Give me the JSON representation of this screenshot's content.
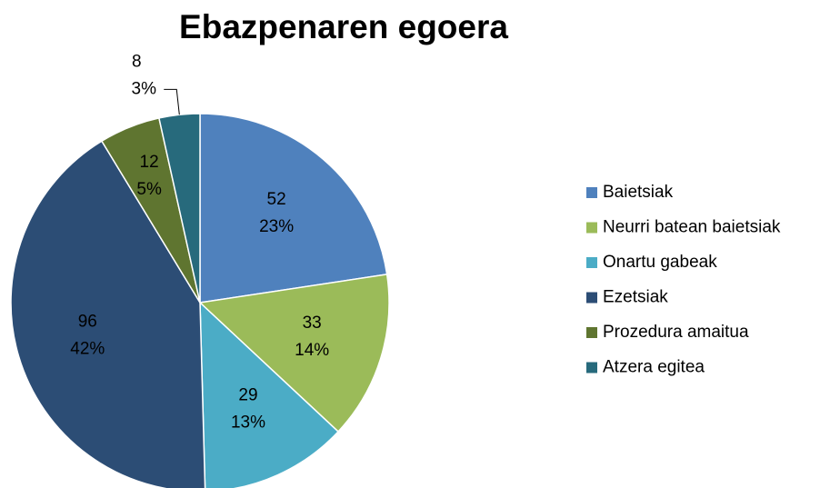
{
  "chart_data": {
    "type": "pie",
    "title": "Ebazpenaren egoera",
    "categories": [
      "Baietsiak",
      "Neurri batean baietsiak",
      "Onartu gabeak",
      "Ezetsiak",
      "Prozedura amaitua",
      "Atzera egitea"
    ],
    "values": [
      52,
      33,
      29,
      96,
      12,
      8
    ],
    "percent_labels": [
      "23%",
      "14%",
      "13%",
      "42%",
      "5%",
      "3%"
    ],
    "colors": [
      "#4f81bd",
      "#9bbb59",
      "#4bacc6",
      "#2c4d75",
      "#5f7530",
      "#276a7c"
    ],
    "legend": "right"
  }
}
